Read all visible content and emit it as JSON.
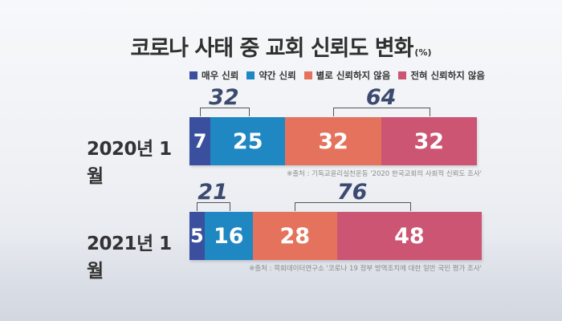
{
  "title": "코로나 사태 중 교회 신뢰도 변화",
  "title_unit": "(%)",
  "chart_data": {
    "type": "bar",
    "stacked": true,
    "orientation": "horizontal",
    "categories": [
      "2020년 1월",
      "2021년 1월"
    ],
    "series": [
      {
        "name": "매우 신뢰",
        "color": "#3a4f9e",
        "values": [
          7,
          5
        ]
      },
      {
        "name": "약간 신뢰",
        "color": "#1f87c2",
        "values": [
          25,
          16
        ]
      },
      {
        "name": "별로 신뢰하지 않음",
        "color": "#e5725c",
        "values": [
          32,
          28
        ]
      },
      {
        "name": "전혀 신뢰하지 않음",
        "color": "#cc5573",
        "values": [
          32,
          48
        ]
      }
    ],
    "group_totals": [
      {
        "trust": "32",
        "distrust": "64"
      },
      {
        "trust": "21",
        "distrust": "76"
      }
    ],
    "sources": [
      "※출처 : 기독교윤리실천운동 '2020 한국교회의 사회적 신뢰도 조사'",
      "※출처 : 목회데이터연구소 '코로나 19 정부 방역조치에 대한 일반 국민 평가 조사'"
    ],
    "legend_position": "top"
  }
}
